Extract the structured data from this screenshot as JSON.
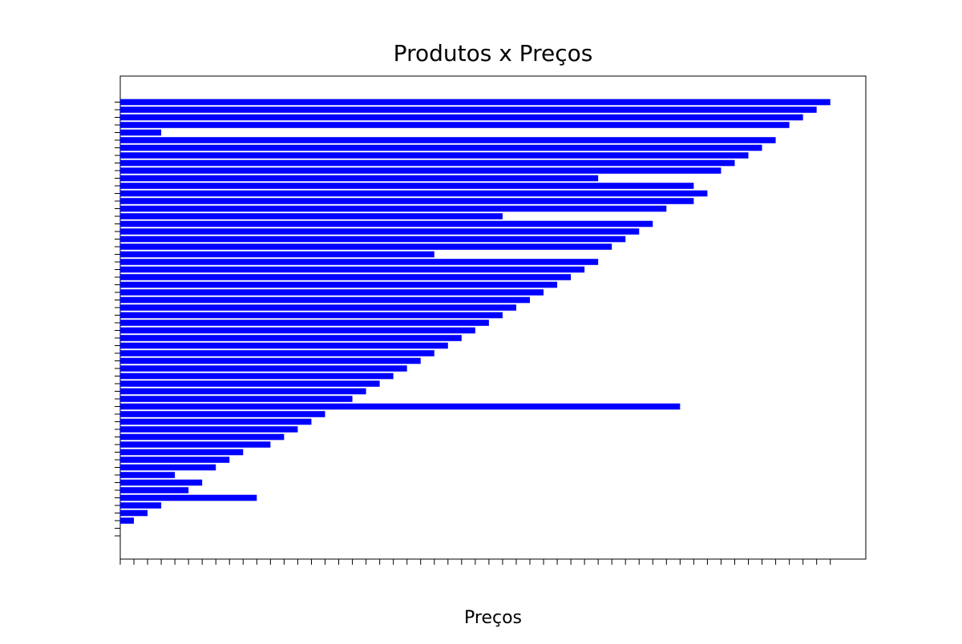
{
  "chart_data": {
    "type": "barh",
    "title": "Produtos x Preços",
    "xlabel": "Preços",
    "categories": [
      null,
      null,
      null,
      null,
      null,
      null,
      null,
      null,
      null,
      null,
      null,
      null,
      null,
      null,
      null,
      null,
      null,
      null,
      null,
      null,
      null,
      null,
      null,
      null,
      null,
      null,
      null,
      null,
      null,
      null,
      null,
      null,
      null,
      null,
      null,
      null,
      null,
      null,
      null,
      null,
      null,
      null,
      null,
      null,
      null,
      null,
      null,
      null,
      null,
      null,
      null,
      null,
      null,
      null,
      null,
      null,
      null,
      null
    ],
    "values": [
      0,
      0,
      1,
      2,
      3,
      10,
      5,
      6,
      4,
      7,
      8,
      9,
      11,
      12,
      13,
      14,
      15,
      41,
      17,
      18,
      19,
      20,
      21,
      22,
      23,
      24,
      25,
      26,
      27,
      28,
      29,
      30,
      31,
      32,
      33,
      34,
      35,
      23,
      36,
      37,
      38,
      39,
      28,
      40,
      42,
      43,
      42,
      35,
      44,
      45,
      46,
      47,
      48,
      3,
      49,
      50,
      51,
      52
    ],
    "color": "#0000ff",
    "xlim": [
      0,
      54.6
    ],
    "xticks": [
      0,
      1,
      2,
      3,
      4,
      5,
      6,
      7,
      8,
      9,
      10,
      11,
      12,
      13,
      14,
      15,
      16,
      17,
      18,
      19,
      20,
      21,
      22,
      23,
      24,
      25,
      26,
      27,
      28,
      29,
      30,
      31,
      32,
      33,
      34,
      35,
      36,
      37,
      38,
      39,
      40,
      41,
      42,
      43,
      44,
      45,
      46,
      47,
      48,
      49,
      50,
      51,
      52
    ]
  }
}
